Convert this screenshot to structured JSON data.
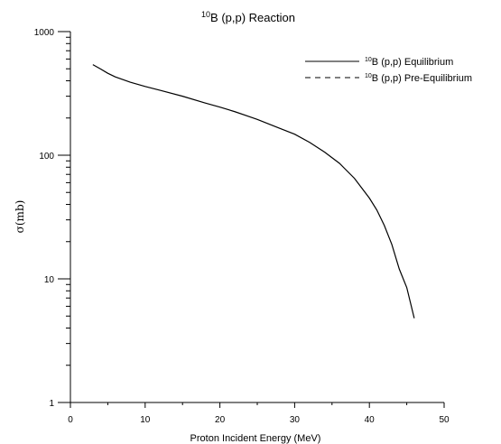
{
  "chart_data": {
    "type": "line",
    "title": {
      "superscript": "10",
      "text": "B (p,p) Reaction"
    },
    "xlabel": "Proton Incident Energy (MeV)",
    "ylabel": "σ(mb)",
    "xlim": [
      0,
      50
    ],
    "ylim": [
      1,
      1000
    ],
    "yscale": "log",
    "grid": false,
    "legend_position": "top-right",
    "x_ticks": [
      0,
      10,
      20,
      30,
      40,
      50
    ],
    "x_tick_labels": [
      "0",
      "10",
      "20",
      "30",
      "40",
      "50"
    ],
    "y_ticks": [
      1,
      10,
      100,
      1000
    ],
    "y_tick_labels": [
      "1",
      "10",
      "100",
      "1000"
    ],
    "series": [
      {
        "name": "B (p,p) Equilibrium",
        "name_superscript": "10",
        "style": "solid",
        "color": "#000000",
        "x": [
          3,
          4,
          5,
          6,
          8,
          10,
          12,
          15,
          18,
          20,
          22,
          25,
          28,
          30,
          32,
          34,
          36,
          38,
          40,
          41,
          42,
          43,
          44,
          45,
          46
        ],
        "y": [
          540,
          500,
          460,
          430,
          390,
          360,
          335,
          300,
          265,
          245,
          225,
          195,
          165,
          148,
          127,
          106,
          86,
          65,
          45,
          36,
          27,
          19,
          12,
          8.5,
          4.8
        ]
      },
      {
        "name": "B (p,p) Pre-Equilibrium",
        "name_superscript": "10",
        "style": "dashed",
        "color": "#000000",
        "x": [],
        "y": []
      }
    ]
  }
}
